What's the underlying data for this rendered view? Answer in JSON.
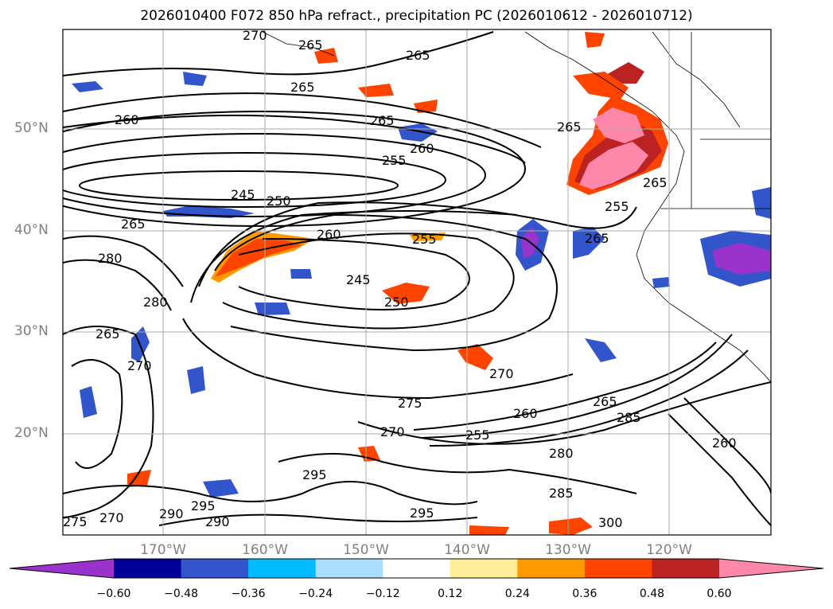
{
  "title": "2026010400 F072 850 hPa refract., precipitation PC (2026010612 - 2026010712)",
  "map": {
    "lat_labels": [
      "50°N",
      "40°N",
      "30°N",
      "20°N"
    ],
    "lon_labels": [
      "170°W",
      "160°W",
      "150°W",
      "140°W",
      "130°W",
      "120°W"
    ],
    "contour_labels": [
      "270",
      "265",
      "265",
      "265",
      "265",
      "260",
      "260",
      "255",
      "245",
      "250",
      "265",
      "280",
      "260",
      "255",
      "245",
      "250",
      "280",
      "265",
      "270",
      "265",
      "275",
      "260",
      "270",
      "255",
      "265",
      "285",
      "280",
      "270",
      "295",
      "290",
      "295",
      "290",
      "275",
      "270",
      "285",
      "295",
      "300",
      "260",
      "265",
      "265",
      "255"
    ]
  },
  "colorbar": {
    "ticks": [
      "−0.60",
      "−0.48",
      "−0.36",
      "−0.24",
      "−0.12",
      "0.12",
      "0.24",
      "0.36",
      "0.48",
      "0.60"
    ],
    "colors": [
      "#9933cc",
      "#000099",
      "#3355cc",
      "#00bbff",
      "#aaddff",
      "#ffffff",
      "#ffee99",
      "#ff9900",
      "#ff4400",
      "#bb2222",
      "#ff88aa"
    ]
  }
}
